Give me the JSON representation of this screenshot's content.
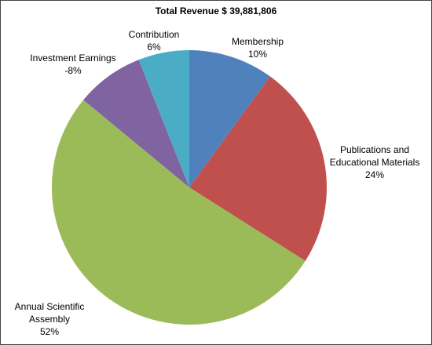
{
  "chart_data": {
    "type": "pie",
    "title": "Total Revenue $ 39,881,806",
    "categories": [
      "Membership",
      "Publications and Educational Materials",
      "Annual Scientific Assembly",
      "Investment Earnings",
      "Contribution"
    ],
    "values": [
      10,
      24,
      52,
      -8,
      6
    ],
    "value_labels": [
      "10%",
      "24%",
      "52%",
      "-8%",
      "6%"
    ],
    "colors": [
      "#4f81bd",
      "#c0504d",
      "#9bbb59",
      "#8064a2",
      "#4bacc6"
    ]
  }
}
